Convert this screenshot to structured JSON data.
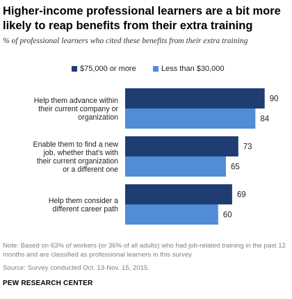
{
  "chart_data": {
    "type": "bar",
    "orientation": "horizontal",
    "title": "Higher-income professional learners are a bit more likely to reap benefits from their extra training",
    "subtitle": "% of professional learners who cited these benefits from their extra training",
    "categories": [
      "Help them advance within their current company or organization",
      "Enable them to find a new job, whether that's with their current organization or a different one",
      "Help them consider a different career path"
    ],
    "category_lines": [
      [
        "Help them advance within",
        "their current company or",
        "organization"
      ],
      [
        "Enable them to find a new",
        "job, whether that's with",
        "their current organization",
        "or a different one"
      ],
      [
        "Help them consider a",
        "different career path"
      ]
    ],
    "series": [
      {
        "name": "$75,000 or more",
        "color": "#1f3d73",
        "values": [
          90,
          73,
          69
        ]
      },
      {
        "name": "Less than $30,000",
        "color": "#4f8dd6",
        "values": [
          84,
          65,
          60
        ]
      }
    ],
    "xlim": [
      0,
      100
    ],
    "legend_position": "top",
    "grid": false
  },
  "footer": {
    "note": "Note: Based on 63% of workers (or 36% of all adults) who had job-related training in the past 12 months and are classified as professional learners in this survey",
    "source": "Source: Survey conducted Oct. 13-Nov. 15, 2015.",
    "brand": "PEW RESEARCH CENTER"
  }
}
